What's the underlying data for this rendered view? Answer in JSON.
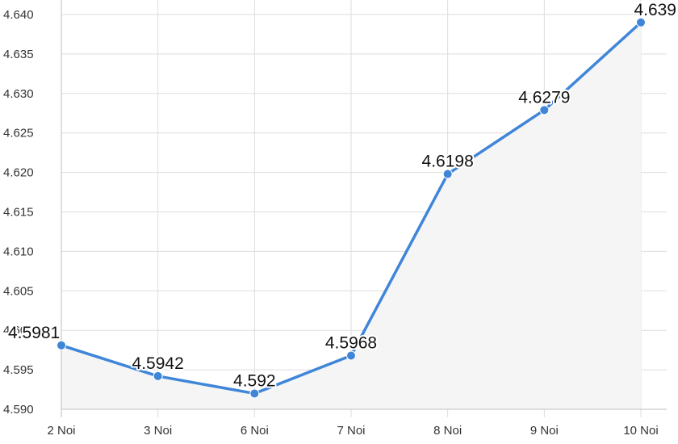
{
  "chart_data": {
    "type": "area",
    "categories": [
      "2 Noi",
      "3 Noi",
      "6 Noi",
      "7 Noi",
      "8 Noi",
      "9 Noi",
      "10 Noi"
    ],
    "series": [
      {
        "values": [
          4.5981,
          4.5942,
          4.592,
          4.5968,
          4.6198,
          4.6279,
          4.639
        ]
      }
    ],
    "data_labels": [
      "4.5981",
      "4.5942",
      "4.592",
      "4.5968",
      "4.6198",
      "4.6279",
      "4.639"
    ],
    "y_ticks": [
      "4.590",
      "4.595",
      "4.600",
      "4.605",
      "4.610",
      "4.615",
      "4.620",
      "4.625",
      "4.630",
      "4.635",
      "4.640"
    ],
    "ylim": [
      4.59,
      4.64
    ],
    "title": "",
    "xlabel": "",
    "ylabel": "",
    "grid": true,
    "legend": "none",
    "colors": {
      "line": "#3f86d8",
      "point": "#3f86d8",
      "area_fill": "#f5f5f5",
      "grid": "#dddddd",
      "axis": "#c9c9c9"
    }
  }
}
